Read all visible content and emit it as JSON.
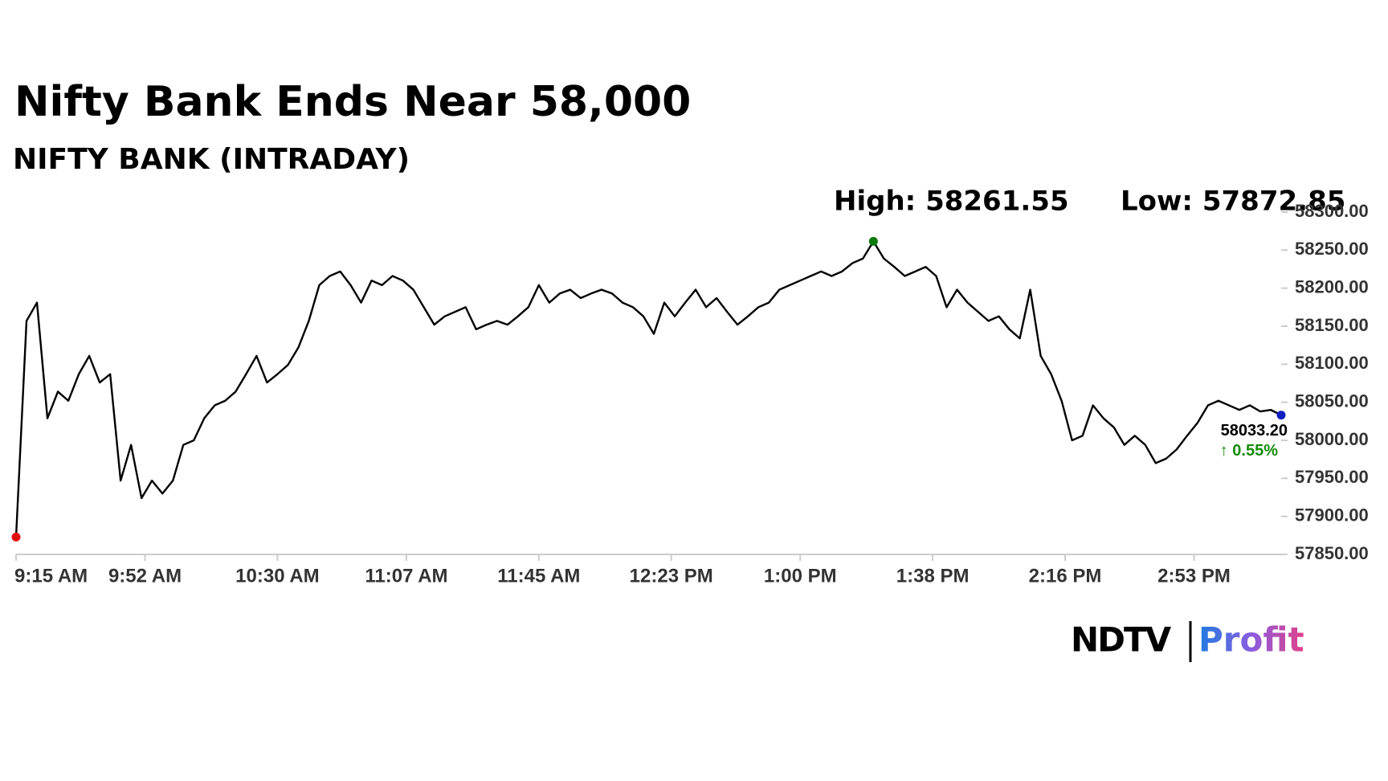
{
  "chart_data": {
    "type": "line",
    "title": "Nifty Bank Ends Near 58,000",
    "subtitle": "NIFTY BANK (INTRADAY)",
    "high_label": "High: 58261.55",
    "low_label": "Low: 57872.85",
    "last_label": "58033.20",
    "change_label": "↑ 0.55%",
    "change_color": "#148c0a",
    "color": "#000000",
    "high_color": "#0a7a0a",
    "low_color": "#e01010",
    "last_color": "#1020c0",
    "logo_brand": "NDTV",
    "logo_product": "Profit",
    "x": [
      "9:15 AM",
      "9:18 AM",
      "9:21 AM",
      "9:24 AM",
      "9:27 AM",
      "9:30 AM",
      "9:33 AM",
      "9:36 AM",
      "9:39 AM",
      "9:42 AM",
      "9:45 AM",
      "9:48 AM",
      "9:51 AM",
      "9:54 AM",
      "9:57 AM",
      "10:00 AM",
      "10:03 AM",
      "10:06 AM",
      "10:09 AM",
      "10:12 AM",
      "10:15 AM",
      "10:18 AM",
      "10:21 AM",
      "10:24 AM",
      "10:27 AM",
      "10:30 AM",
      "10:33 AM",
      "10:36 AM",
      "10:39 AM",
      "10:42 AM",
      "10:45 AM",
      "10:48 AM",
      "10:51 AM",
      "10:54 AM",
      "10:57 AM",
      "11:00 AM",
      "11:03 AM",
      "11:06 AM",
      "11:09 AM",
      "11:12 AM",
      "11:15 AM",
      "11:18 AM",
      "11:21 AM",
      "11:24 AM",
      "11:27 AM",
      "11:30 AM",
      "11:33 AM",
      "11:36 AM",
      "11:39 AM",
      "11:42 AM",
      "11:45 AM",
      "11:48 AM",
      "11:51 AM",
      "11:54 AM",
      "11:57 AM",
      "12:00 PM",
      "12:03 PM",
      "12:06 PM",
      "12:09 PM",
      "12:12 PM",
      "12:15 PM",
      "12:18 PM",
      "12:21 PM",
      "12:24 PM",
      "12:27 PM",
      "12:30 PM",
      "12:33 PM",
      "12:36 PM",
      "12:39 PM",
      "12:42 PM",
      "12:45 PM",
      "12:48 PM",
      "12:51 PM",
      "12:54 PM",
      "12:57 PM",
      "1:00 PM",
      "1:03 PM",
      "1:06 PM",
      "1:09 PM",
      "1:12 PM",
      "1:15 PM",
      "1:18 PM",
      "1:21 PM",
      "1:24 PM",
      "1:27 PM",
      "1:30 PM",
      "1:33 PM",
      "1:36 PM",
      "1:39 PM",
      "1:42 PM",
      "1:45 PM",
      "1:48 PM",
      "1:51 PM",
      "1:54 PM",
      "1:57 PM",
      "2:00 PM",
      "2:03 PM",
      "2:06 PM",
      "2:09 PM",
      "2:12 PM",
      "2:15 PM",
      "2:18 PM",
      "2:21 PM",
      "2:24 PM",
      "2:27 PM",
      "2:30 PM",
      "2:33 PM",
      "2:36 PM",
      "2:39 PM",
      "2:42 PM",
      "2:45 PM",
      "2:48 PM",
      "2:51 PM",
      "2:54 PM",
      "2:57 PM",
      "3:00 PM",
      "3:03 PM",
      "3:06 PM",
      "3:09 PM",
      "3:12 PM",
      "3:15 PM",
      "3:18 PM"
    ],
    "values": [
      57872.85,
      58157,
      58181,
      58029,
      58064,
      58052,
      58087,
      58111,
      58076,
      58087,
      57947,
      57994,
      57924,
      57947,
      57930,
      57947,
      57994,
      58000,
      58029,
      58046,
      58052,
      58064,
      58087,
      58111,
      58076,
      58087,
      58099,
      58122,
      58157,
      58204,
      58216,
      58222,
      58204,
      58181,
      58210,
      58204,
      58216,
      58210,
      58198,
      58175,
      58152,
      58163,
      58169,
      58175,
      58146,
      58152,
      58157,
      58152,
      58163,
      58175,
      58204,
      58181,
      58193,
      58198,
      58187,
      58193,
      58198,
      58193,
      58181,
      58175,
      58163,
      58140,
      58181,
      58163,
      58181,
      58198,
      58175,
      58187,
      58169,
      58152,
      58163,
      58175,
      58181,
      58198,
      58204,
      58210,
      58216,
      58222,
      58216,
      58222,
      58233,
      58239,
      58261.55,
      58239,
      58228,
      58216,
      58222,
      58228,
      58216,
      58175,
      58198,
      58181,
      58169,
      58157,
      58163,
      58146,
      58134,
      58198,
      58111,
      58087,
      58052,
      58000,
      58006,
      58046,
      58029,
      58017,
      57994,
      58006,
      57994,
      57970,
      57976,
      57988,
      58006,
      58023,
      58046,
      58052,
      58046,
      58040,
      58046,
      58038,
      58040,
      58033.2
    ],
    "xlim": [
      "9:15 AM",
      "3:18 PM"
    ],
    "xticks": [
      "9:15 AM",
      "9:52 AM",
      "10:30 AM",
      "11:07 AM",
      "11:45 AM",
      "12:23 PM",
      "1:00 PM",
      "1:38 PM",
      "2:16 PM",
      "2:53 PM"
    ],
    "ylim": [
      57850,
      58300
    ],
    "yticks": [
      {
        "value": 57850,
        "label": "57850.00"
      },
      {
        "value": 57900,
        "label": "57900.00"
      },
      {
        "value": 57950,
        "label": "57950.00"
      },
      {
        "value": 58000,
        "label": "58000.00"
      },
      {
        "value": 58050,
        "label": "58050.00"
      },
      {
        "value": 58100,
        "label": "58100.00"
      },
      {
        "value": 58150,
        "label": "58150.00"
      },
      {
        "value": 58200,
        "label": "58200.00"
      },
      {
        "value": 58250,
        "label": "58250.00"
      },
      {
        "value": 58300,
        "label": "58300.00"
      }
    ],
    "grid": false
  }
}
